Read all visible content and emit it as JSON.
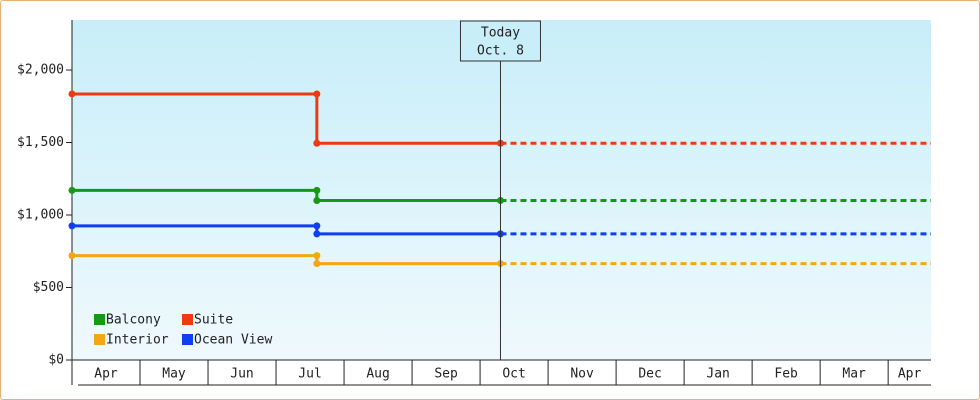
{
  "chart_data": {
    "type": "line",
    "annotation": {
      "x": 6.3,
      "lines": [
        "Today",
        "Oct. 8"
      ]
    },
    "xlim": [
      0,
      12.63
    ],
    "xticks": [
      {
        "value": 0.5,
        "label": "Apr"
      },
      {
        "value": 1.5,
        "label": "May"
      },
      {
        "value": 2.5,
        "label": "Jun"
      },
      {
        "value": 3.5,
        "label": "Jul"
      },
      {
        "value": 4.5,
        "label": "Aug"
      },
      {
        "value": 5.5,
        "label": "Sep"
      },
      {
        "value": 6.5,
        "label": "Oct"
      },
      {
        "value": 7.5,
        "label": "Nov"
      },
      {
        "value": 8.5,
        "label": "Dec"
      },
      {
        "value": 9.5,
        "label": "Jan"
      },
      {
        "value": 10.5,
        "label": "Feb"
      },
      {
        "value": 11.5,
        "label": "Mar"
      },
      {
        "value": 12.5,
        "label": "Apr"
      }
    ],
    "ylim": [
      0,
      2345
    ],
    "yticks": [
      {
        "value": 0,
        "label": "$0"
      },
      {
        "value": 500,
        "label": "$500"
      },
      {
        "value": 1000,
        "label": "$1,000"
      },
      {
        "value": 1500,
        "label": "$1,500"
      },
      {
        "value": 2000,
        "label": "$2,000"
      }
    ],
    "series": [
      {
        "name": "Balcony",
        "color": "#149a14",
        "x": [
          0,
          3.6,
          3.6,
          6.3
        ],
        "values": [
          1170,
          1170,
          1100,
          1100
        ]
      },
      {
        "name": "Suite",
        "color": "#ef3a10",
        "x": [
          0,
          3.6,
          3.6,
          6.3
        ],
        "values": [
          1835,
          1835,
          1495,
          1495
        ]
      },
      {
        "name": "Interior",
        "color": "#f5a614",
        "x": [
          0,
          3.6,
          3.6,
          6.3
        ],
        "values": [
          720,
          720,
          665,
          665
        ]
      },
      {
        "name": "Ocean View",
        "color": "#0f3ff0",
        "x": [
          0,
          3.6,
          3.6,
          6.3
        ],
        "values": [
          925,
          925,
          870,
          870
        ]
      }
    ]
  }
}
